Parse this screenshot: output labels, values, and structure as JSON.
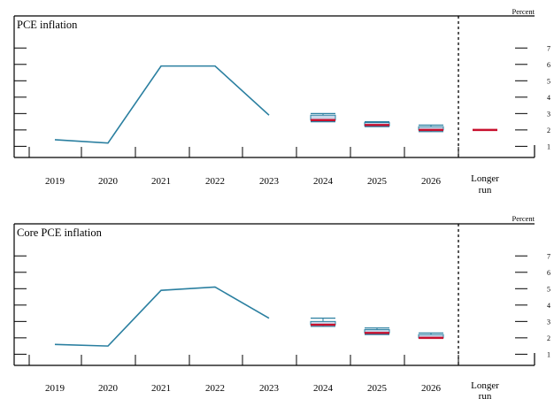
{
  "colors": {
    "line": "#2a7fa0",
    "box_edge": "#2a7fa0",
    "box_fill": "#c9d8ea",
    "median": "#c8102e",
    "axis": "#000000",
    "divider": "#000000"
  },
  "chart_data": [
    {
      "type": "line",
      "title": "PCE inflation",
      "unit_label": "Percent",
      "x_labels": [
        "2019",
        "2020",
        "2021",
        "2022",
        "2023",
        "2024",
        "2025",
        "2026"
      ],
      "longer_run_label": [
        "Longer",
        "run"
      ],
      "y_ticks": [
        "1",
        "2",
        "3",
        "4",
        "5",
        "6",
        "7"
      ],
      "ylim": [
        0.4,
        7.5
      ],
      "history": {
        "x": [
          "2019",
          "2020",
          "2021",
          "2022",
          "2023"
        ],
        "y": [
          1.4,
          1.2,
          5.9,
          5.9,
          2.9
        ]
      },
      "projections": [
        {
          "period": "2024",
          "low": 2.5,
          "high": 3.0,
          "q1": 2.6,
          "q3": 2.9,
          "median": 2.6
        },
        {
          "period": "2025",
          "low": 2.2,
          "high": 2.5,
          "q1": 2.25,
          "q3": 2.45,
          "median": 2.3
        },
        {
          "period": "2026",
          "low": 1.9,
          "high": 2.3,
          "q1": 2.0,
          "q3": 2.2,
          "median": 2.0
        },
        {
          "period": "Longer run",
          "low": 2.0,
          "high": 2.0,
          "q1": 2.0,
          "q3": 2.0,
          "median": 2.0
        }
      ]
    },
    {
      "type": "line",
      "title": "Core PCE inflation",
      "unit_label": "Percent",
      "x_labels": [
        "2019",
        "2020",
        "2021",
        "2022",
        "2023",
        "2024",
        "2025",
        "2026"
      ],
      "longer_run_label": [
        "Longer",
        "run"
      ],
      "y_ticks": [
        "1",
        "2",
        "3",
        "4",
        "5",
        "6",
        "7"
      ],
      "ylim": [
        0.4,
        7.5
      ],
      "history": {
        "x": [
          "2019",
          "2020",
          "2021",
          "2022",
          "2023"
        ],
        "y": [
          1.6,
          1.5,
          4.9,
          5.1,
          3.2
        ]
      },
      "projections": [
        {
          "period": "2024",
          "low": 2.7,
          "high": 3.2,
          "q1": 2.8,
          "q3": 3.0,
          "median": 2.8
        },
        {
          "period": "2025",
          "low": 2.2,
          "high": 2.6,
          "q1": 2.3,
          "q3": 2.5,
          "median": 2.3
        },
        {
          "period": "2026",
          "low": 2.0,
          "high": 2.3,
          "q1": 2.0,
          "q3": 2.2,
          "median": 2.0
        }
      ]
    }
  ]
}
